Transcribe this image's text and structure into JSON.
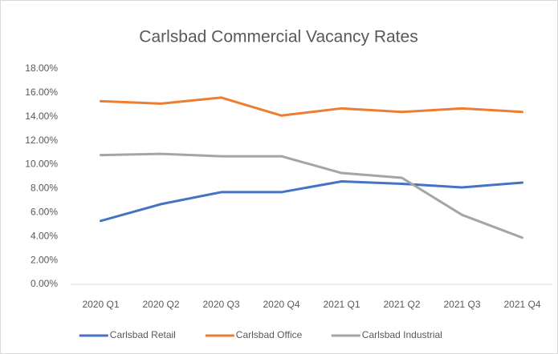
{
  "chart_data": {
    "type": "line",
    "title": "Carlsbad Commercial Vacancy Rates",
    "categories": [
      "2020 Q1",
      "2020 Q2",
      "2020 Q3",
      "2020 Q4",
      "2021 Q1",
      "2021 Q2",
      "2021 Q3",
      "2021 Q4"
    ],
    "series": [
      {
        "name": "Carlsbad Retail",
        "color": "#4472c4",
        "values": [
          5.3,
          6.7,
          7.7,
          7.7,
          8.6,
          8.4,
          8.1,
          8.5
        ]
      },
      {
        "name": "Carlsbad Office",
        "color": "#ed7d31",
        "values": [
          15.3,
          15.1,
          15.6,
          14.1,
          14.7,
          14.4,
          14.7,
          14.4
        ]
      },
      {
        "name": "Carlsbad Industrial",
        "color": "#a5a5a5",
        "values": [
          10.8,
          10.9,
          10.7,
          10.7,
          9.3,
          8.9,
          5.8,
          3.9
        ]
      }
    ],
    "ylim": [
      0,
      18
    ],
    "yticks": [
      {
        "value": 0,
        "label": "0.00%"
      },
      {
        "value": 2,
        "label": "2.00%"
      },
      {
        "value": 4,
        "label": "4.00%"
      },
      {
        "value": 6,
        "label": "6.00%"
      },
      {
        "value": 8,
        "label": "8.00%"
      },
      {
        "value": 10,
        "label": "10.00%"
      },
      {
        "value": 12,
        "label": "12.00%"
      },
      {
        "value": 14,
        "label": "14.00%"
      },
      {
        "value": 16,
        "label": "16.00%"
      },
      {
        "value": 18,
        "label": "18.00%"
      }
    ],
    "grid": false,
    "legend": "bottom"
  }
}
